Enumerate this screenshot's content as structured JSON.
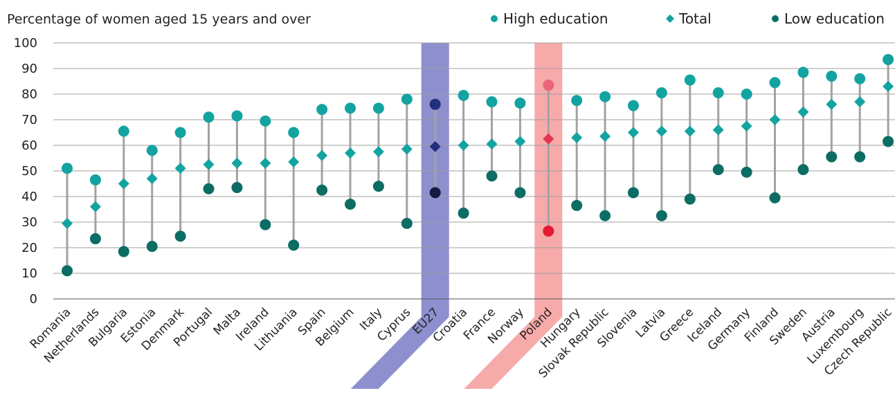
{
  "chart_data": {
    "type": "dot-range",
    "title": "Percentage of women aged 15 years and over",
    "legend": [
      {
        "name": "High education",
        "marker": "circle",
        "color": "#13a3a0"
      },
      {
        "name": "Total",
        "marker": "diamond",
        "color": "#13a3a0"
      },
      {
        "name": "Low education",
        "marker": "circle",
        "color": "#0c6d64"
      }
    ],
    "legend_position": "top-right",
    "ylim": [
      0,
      100
    ],
    "yticks": [
      "0",
      "10",
      "20",
      "30",
      "40",
      "50",
      "60",
      "70",
      "80",
      "90",
      "100"
    ],
    "grid": true,
    "categories": [
      "Romania",
      "Netherlands",
      "Bulgaria",
      "Estonia",
      "Denmark",
      "Portugal",
      "Malta",
      "Ireland",
      "Lithuania",
      "Spain",
      "Belgium",
      "Italy",
      "Cyprus",
      "EU27",
      "Croatia",
      "France",
      "Norway",
      "Poland",
      "Hungary",
      "Slovak Republic",
      "Slovenia",
      "Latvia",
      "Greece",
      "Iceland",
      "Germany",
      "Finland",
      "Sweden",
      "Austria",
      "Luxembourg",
      "Czech Republic"
    ],
    "series": [
      {
        "name": "High education",
        "values": [
          51,
          46.5,
          65.5,
          58,
          65,
          71,
          71.5,
          69.5,
          65,
          74,
          74.5,
          74.5,
          78,
          76,
          79.5,
          77,
          76.5,
          83.5,
          77.5,
          79,
          75.5,
          80.5,
          85.5,
          80.5,
          80,
          84.5,
          88.5,
          87,
          86,
          93.5
        ]
      },
      {
        "name": "Total",
        "values": [
          29.5,
          36,
          45,
          47,
          51,
          52.5,
          53,
          53,
          53.5,
          56,
          57,
          57.5,
          58.5,
          59.5,
          60,
          60.5,
          61.5,
          62.5,
          63,
          63.5,
          65,
          65.5,
          65.5,
          66,
          67.5,
          70,
          73,
          76,
          77,
          83
        ]
      },
      {
        "name": "Low education",
        "values": [
          11,
          23.5,
          18.5,
          20.5,
          24.5,
          43,
          43.5,
          29,
          21,
          42.5,
          37,
          44,
          29.5,
          41.5,
          33.5,
          48,
          41.5,
          26.5,
          36.5,
          32.5,
          41.5,
          32.5,
          39,
          50.5,
          49.5,
          39.5,
          50.5,
          55.5,
          55.5,
          61.5
        ]
      }
    ],
    "highlights": [
      {
        "category": "EU27",
        "band_color": "#8d8fce",
        "high_color": "#20307a",
        "total_color": "#20307a",
        "low_color": "#111c40"
      },
      {
        "category": "Poland",
        "band_color": "#f7aaaa",
        "high_color": "#e8657c",
        "total_color": "#e0364f",
        "low_color": "#e21a33"
      }
    ],
    "colors": {
      "high": "#13a3a0",
      "total": "#13a3a0",
      "low": "#0c6d64",
      "range_line": "#a2a2a2",
      "grid": "#9f9f9f"
    }
  }
}
